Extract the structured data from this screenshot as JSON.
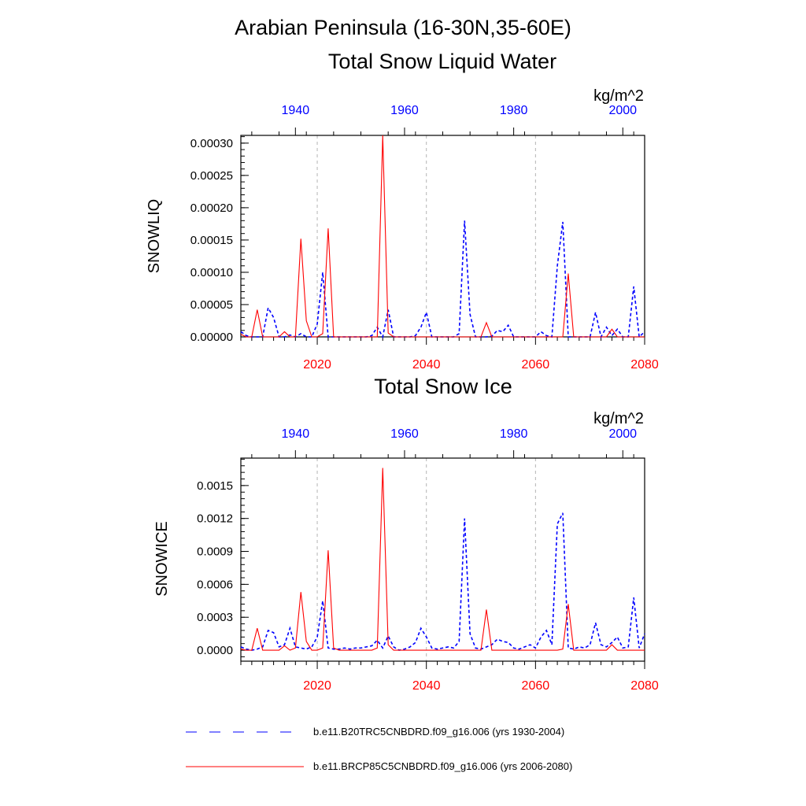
{
  "figure": {
    "title_line1": "Arabian Peninsula (16-30N,35-60E)",
    "colors": {
      "historical": "#0000ff",
      "future": "#ff0000",
      "grid": "#b4b4b4",
      "axis": "#000000"
    }
  },
  "legend": [
    {
      "label": "b.e11.B20TRC5CNBDRD.f09_g16.006 (yrs 1930-2004)",
      "style": "dashed",
      "color": "#0000ff"
    },
    {
      "label": "b.e11.BRCP85C5CNBDRD.f09_g16.006 (yrs 2006-2080)",
      "style": "solid",
      "color": "#ff0000"
    }
  ],
  "chart_data": [
    {
      "type": "line",
      "title": "Total Snow Liquid Water",
      "units": "kg/m^2",
      "ylabel": "SNOWLIQ",
      "xlabel": "",
      "ylim": [
        0,
        0.000312
      ],
      "yticks": [
        0,
        5e-05,
        0.0001,
        0.00015,
        0.0002,
        0.00025,
        0.0003
      ],
      "yticklabels": [
        "0.00000",
        "0.00005",
        "0.00010",
        "0.00015",
        "0.00020",
        "0.00025",
        "0.00030"
      ],
      "bottom_axis": {
        "range": [
          2006,
          2080
        ],
        "ticks": [
          2020,
          2040,
          2060,
          2080
        ],
        "ticklabels": [
          "2020",
          "2040",
          "2060",
          "2080"
        ]
      },
      "top_axis": {
        "range": [
          1930,
          2004
        ],
        "ticks": [
          1940,
          1960,
          1980,
          2000
        ],
        "ticklabels": [
          "1940",
          "1960",
          "1980",
          "2000"
        ]
      },
      "grid_x": [
        2020,
        2040,
        2060
      ],
      "series": [
        {
          "name": "b.e11.B20TRC5CNBDRD.f09_g16.006 (yrs 1930-2004)",
          "axis": "top",
          "style": "dashed",
          "color": "#0000ff",
          "x": [
            1930,
            1931,
            1932,
            1933,
            1934,
            1935,
            1936,
            1937,
            1938,
            1939,
            1940,
            1941,
            1942,
            1943,
            1944,
            1945,
            1946,
            1947,
            1948,
            1949,
            1950,
            1951,
            1952,
            1953,
            1954,
            1955,
            1956,
            1957,
            1958,
            1959,
            1960,
            1961,
            1962,
            1963,
            1964,
            1965,
            1966,
            1967,
            1968,
            1969,
            1970,
            1971,
            1972,
            1973,
            1974,
            1975,
            1976,
            1977,
            1978,
            1979,
            1980,
            1981,
            1982,
            1983,
            1984,
            1985,
            1986,
            1987,
            1988,
            1989,
            1990,
            1991,
            1992,
            1993,
            1994,
            1995,
            1996,
            1997,
            1998,
            1999,
            2000,
            2001,
            2002,
            2003,
            2004
          ],
          "values": [
            8e-06,
            2e-06,
            0,
            0,
            0,
            4.5e-05,
            3e-05,
            0,
            0,
            3e-06,
            0,
            5e-06,
            0,
            0,
            2e-05,
            0.0001,
            0,
            0,
            0,
            0,
            0,
            0,
            0,
            0,
            2e-06,
            1.5e-05,
            0,
            4.2e-05,
            0,
            0,
            0,
            0,
            2e-06,
            1.5e-05,
            3.8e-05,
            0,
            0,
            0,
            0,
            0,
            5e-06,
            0.00018,
            3.5e-05,
            0,
            0,
            0,
            1e-06,
            1e-05,
            8e-06,
            1.8e-05,
            0,
            0,
            0,
            0,
            0,
            8e-06,
            2e-06,
            0,
            0.00011,
            0.000178,
            0,
            0,
            0,
            0,
            0,
            3.8e-05,
            0,
            1.5e-05,
            2e-06,
            1.2e-05,
            0,
            0,
            7.8e-05,
            0,
            8e-06
          ]
        },
        {
          "name": "b.e11.BRCP85C5CNBDRD.f09_g16.006 (yrs 2006-2080)",
          "axis": "bottom",
          "style": "solid",
          "color": "#ff0000",
          "x": [
            2006,
            2007,
            2008,
            2009,
            2010,
            2011,
            2012,
            2013,
            2014,
            2015,
            2016,
            2017,
            2018,
            2019,
            2020,
            2021,
            2022,
            2023,
            2024,
            2025,
            2026,
            2027,
            2028,
            2029,
            2030,
            2031,
            2032,
            2033,
            2034,
            2035,
            2036,
            2037,
            2038,
            2039,
            2040,
            2041,
            2042,
            2043,
            2044,
            2045,
            2046,
            2047,
            2048,
            2049,
            2050,
            2051,
            2052,
            2053,
            2054,
            2055,
            2056,
            2057,
            2058,
            2059,
            2060,
            2061,
            2062,
            2063,
            2064,
            2065,
            2066,
            2067,
            2068,
            2069,
            2070,
            2071,
            2072,
            2073,
            2074,
            2075,
            2076,
            2077,
            2078,
            2079,
            2080
          ],
          "values": [
            4e-06,
            0,
            0,
            4.2e-05,
            0,
            0,
            0,
            0,
            8e-06,
            0,
            0,
            0.000152,
            2.5e-05,
            0,
            0,
            5e-06,
            0.000168,
            0,
            0,
            0,
            0,
            0,
            0,
            0,
            0,
            0,
            0.000312,
            6e-06,
            0,
            0,
            0,
            0,
            0,
            0,
            0,
            0,
            0,
            0,
            0,
            0,
            0,
            0,
            0,
            0,
            0,
            2.2e-05,
            0,
            0,
            0,
            0,
            0,
            0,
            0,
            0,
            0,
            0,
            0,
            0,
            0,
            0,
            9.8e-05,
            0,
            0,
            0,
            0,
            0,
            0,
            0,
            1.2e-05,
            0,
            0,
            0,
            0,
            0,
            0
          ]
        }
      ]
    },
    {
      "type": "line",
      "title": "Total Snow Ice",
      "units": "kg/m^2",
      "ylabel": "SNOWICE",
      "xlabel": "",
      "ylim": [
        -0.0001,
        0.00175
      ],
      "yticks": [
        0,
        0.0003,
        0.0006,
        0.0009,
        0.0012,
        0.0015
      ],
      "yticklabels": [
        "0.0000",
        "0.0003",
        "0.0006",
        "0.0009",
        "0.0012",
        "0.0015"
      ],
      "bottom_axis": {
        "range": [
          2006,
          2080
        ],
        "ticks": [
          2020,
          2040,
          2060,
          2080
        ],
        "ticklabels": [
          "2020",
          "2040",
          "2060",
          "2080"
        ]
      },
      "top_axis": {
        "range": [
          1930,
          2004
        ],
        "ticks": [
          1940,
          1960,
          1980,
          2000
        ],
        "ticklabels": [
          "1940",
          "1960",
          "1980",
          "2000"
        ]
      },
      "grid_x": [
        2020,
        2040,
        2060
      ],
      "series": [
        {
          "name": "b.e11.B20TRC5CNBDRD.f09_g16.006 (yrs 1930-2004)",
          "axis": "top",
          "style": "dashed",
          "color": "#0000ff",
          "x": [
            1930,
            1931,
            1932,
            1933,
            1934,
            1935,
            1936,
            1937,
            1938,
            1939,
            1940,
            1941,
            1942,
            1943,
            1944,
            1945,
            1946,
            1947,
            1948,
            1949,
            1950,
            1951,
            1952,
            1953,
            1954,
            1955,
            1956,
            1957,
            1958,
            1959,
            1960,
            1961,
            1962,
            1963,
            1964,
            1965,
            1966,
            1967,
            1968,
            1969,
            1970,
            1971,
            1972,
            1973,
            1974,
            1975,
            1976,
            1977,
            1978,
            1979,
            1980,
            1981,
            1982,
            1983,
            1984,
            1985,
            1986,
            1987,
            1988,
            1989,
            1990,
            1991,
            1992,
            1993,
            1994,
            1995,
            1996,
            1997,
            1998,
            1999,
            2000,
            2001,
            2002,
            2003,
            2004
          ],
          "values": [
            3e-05,
            1e-05,
            0,
            1e-05,
            3e-05,
            0.00018,
            0.00016,
            3e-05,
            5e-05,
            0.0002,
            3e-05,
            2e-05,
            1e-05,
            3e-05,
            0.00012,
            0.00045,
            2e-05,
            1e-05,
            1e-05,
            2e-05,
            1e-05,
            2e-05,
            2e-05,
            3e-05,
            4e-05,
            9e-05,
            2e-05,
            0.00013,
            3e-05,
            0,
            1e-05,
            3e-05,
            7e-05,
            0.0002,
            0.00012,
            2e-05,
            1e-05,
            2e-05,
            3e-05,
            2e-05,
            8e-05,
            0.0012,
            0.00015,
            2e-05,
            1e-05,
            3e-05,
            5e-05,
            0.0001,
            8e-05,
            7e-05,
            2e-05,
            1e-05,
            3e-05,
            5e-05,
            2e-05,
            0.00012,
            0.00018,
            5e-05,
            0.00115,
            0.00125,
            2e-05,
            1e-05,
            3e-05,
            2e-05,
            5e-05,
            0.00025,
            5e-05,
            3e-05,
            7e-05,
            0.00012,
            2e-05,
            3e-05,
            0.00048,
            2e-05,
            0.00015
          ]
        },
        {
          "name": "b.e11.BRCP85C5CNBDRD.f09_g16.006 (yrs 2006-2080)",
          "axis": "bottom",
          "style": "solid",
          "color": "#ff0000",
          "x": [
            2006,
            2007,
            2008,
            2009,
            2010,
            2011,
            2012,
            2013,
            2014,
            2015,
            2016,
            2017,
            2018,
            2019,
            2020,
            2021,
            2022,
            2023,
            2024,
            2025,
            2026,
            2027,
            2028,
            2029,
            2030,
            2031,
            2032,
            2033,
            2034,
            2035,
            2036,
            2037,
            2038,
            2039,
            2040,
            2041,
            2042,
            2043,
            2044,
            2045,
            2046,
            2047,
            2048,
            2049,
            2050,
            2051,
            2052,
            2053,
            2054,
            2055,
            2056,
            2057,
            2058,
            2059,
            2060,
            2061,
            2062,
            2063,
            2064,
            2065,
            2066,
            2067,
            2068,
            2069,
            2070,
            2071,
            2072,
            2073,
            2074,
            2075,
            2076,
            2077,
            2078,
            2079,
            2080
          ],
          "values": [
            1e-05,
            0,
            0,
            0.0002,
            0,
            0,
            0,
            0,
            4e-05,
            0,
            2e-05,
            0.00053,
            8e-05,
            0,
            0,
            2e-05,
            0.00091,
            2e-05,
            0,
            0,
            0,
            0,
            0,
            0,
            0,
            2e-05,
            0.00166,
            5e-05,
            0,
            0,
            0,
            0,
            0,
            0,
            0,
            0,
            0,
            0,
            0,
            0,
            0,
            0,
            0,
            0,
            0,
            0.00037,
            0,
            0,
            0,
            0,
            0,
            0,
            0,
            0,
            0,
            0,
            0,
            0,
            0,
            1e-05,
            0.00042,
            0,
            0,
            0,
            0,
            0,
            0,
            0,
            5e-05,
            0,
            0,
            0,
            0,
            0,
            0
          ]
        }
      ]
    }
  ]
}
